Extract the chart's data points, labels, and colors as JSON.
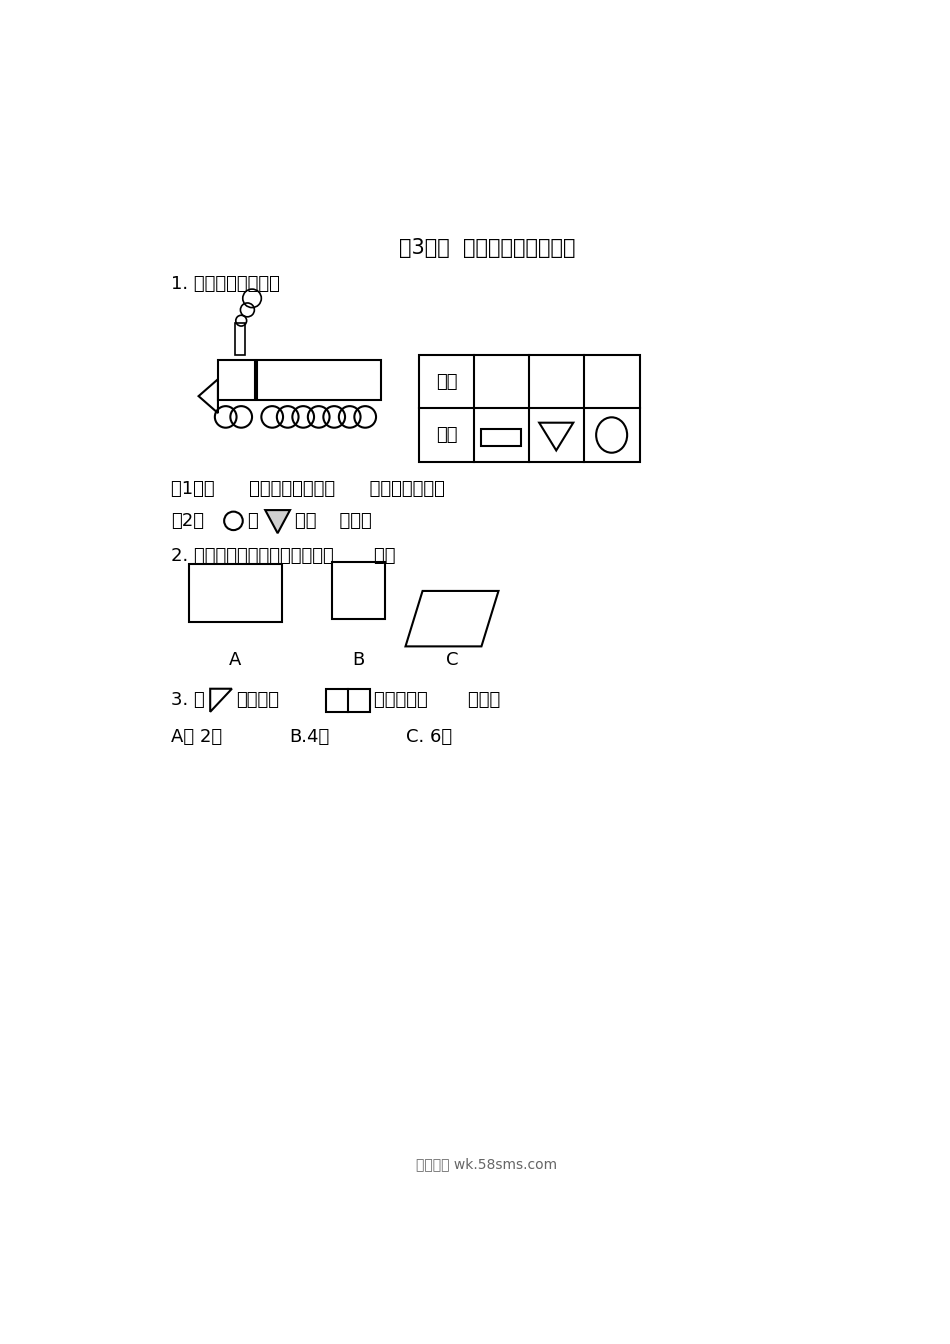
{
  "title": "第3课时  认识图形、分类统计",
  "q1_label": "1. 数一数，填一填。",
  "q1_sub1": "（1）（      ）的个数最多，（      ）的个数最少。",
  "q1_sub2_pre": "（2）",
  "q1_sub2_mid": "比",
  "q1_sub2_suf": "多（    ）个。",
  "q2_label": "2. 下面图形是平行四边形的是（       ）。",
  "q3_pre": "3. 用",
  "q3_mid": "拼成一个",
  "q3_suf": "，需要用（       ）个。",
  "q3_A": "A、 2个",
  "q3_B": "B.4个",
  "q3_C": "C. 6个",
  "table_xing": "图形",
  "table_ge": "个数",
  "footer": "五八文库 wk.58sms.com",
  "bg_color": "#ffffff",
  "line_color": "#000000",
  "text_color": "#000000"
}
